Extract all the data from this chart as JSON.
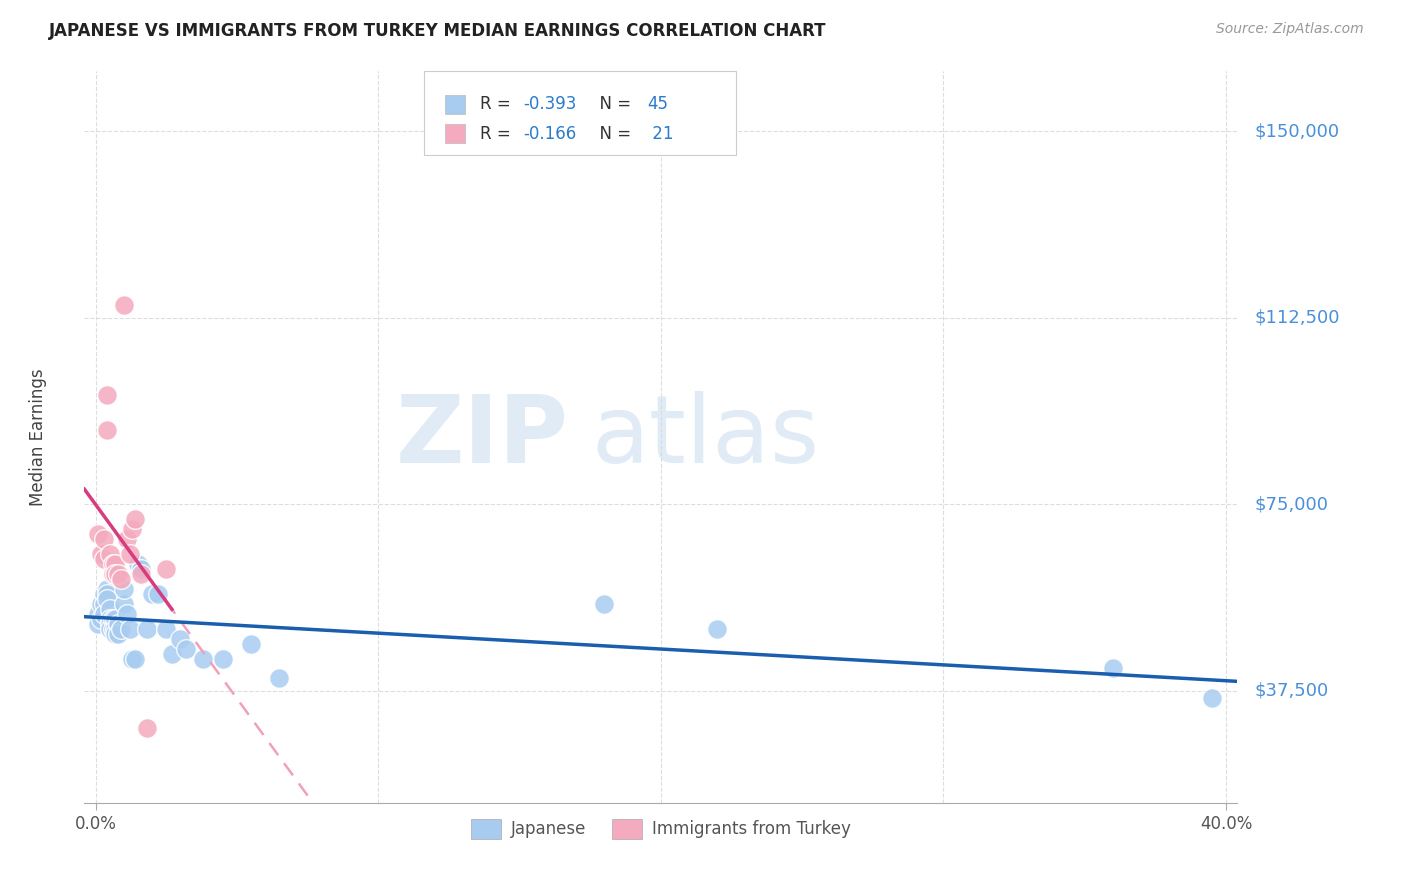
{
  "title": "JAPANESE VS IMMIGRANTS FROM TURKEY MEDIAN EARNINGS CORRELATION CHART",
  "source": "Source: ZipAtlas.com",
  "ylabel": "Median Earnings",
  "yticks": [
    37500,
    75000,
    112500,
    150000
  ],
  "ytick_labels": [
    "$37,500",
    "$75,000",
    "$112,500",
    "$150,000"
  ],
  "ymin": 15000,
  "ymax": 162000,
  "xmin": -0.004,
  "xmax": 0.404,
  "watermark_zip": "ZIP",
  "watermark_atlas": "atlas",
  "color_japanese": "#A8CCF0",
  "color_turkey": "#F4AABF",
  "color_line_japanese": "#1A5EAD",
  "color_line_turkey": "#D63C7E",
  "color_dashed_turkey": "#F0A0BC",
  "background_color": "#FFFFFF",
  "grid_color": "#DDDDDD",
  "legend_r1_label": "R = ",
  "legend_r1_val": "-0.393",
  "legend_r1_n_label": "   N = ",
  "legend_r1_n_val": "45",
  "legend_r2_label": "R = ",
  "legend_r2_val": "-0.166",
  "legend_r2_n_label": "   N = ",
  "legend_r2_n_val": " 21",
  "japanese_x": [
    0.001,
    0.001,
    0.002,
    0.002,
    0.003,
    0.003,
    0.003,
    0.004,
    0.004,
    0.004,
    0.005,
    0.005,
    0.005,
    0.005,
    0.006,
    0.006,
    0.007,
    0.007,
    0.007,
    0.008,
    0.008,
    0.009,
    0.01,
    0.01,
    0.011,
    0.012,
    0.013,
    0.014,
    0.015,
    0.016,
    0.018,
    0.02,
    0.022,
    0.025,
    0.027,
    0.03,
    0.032,
    0.038,
    0.045,
    0.055,
    0.065,
    0.18,
    0.22,
    0.36,
    0.395
  ],
  "japanese_y": [
    53000,
    51000,
    55000,
    52000,
    57000,
    55000,
    53000,
    58000,
    57000,
    56000,
    54000,
    52000,
    51000,
    50000,
    52000,
    50000,
    52000,
    50000,
    49000,
    51000,
    49000,
    50000,
    55000,
    58000,
    53000,
    50000,
    44000,
    44000,
    63000,
    62000,
    50000,
    57000,
    57000,
    50000,
    45000,
    48000,
    46000,
    44000,
    44000,
    47000,
    40000,
    55000,
    50000,
    42000,
    36000
  ],
  "turkey_x": [
    0.001,
    0.002,
    0.003,
    0.003,
    0.004,
    0.004,
    0.005,
    0.006,
    0.006,
    0.007,
    0.007,
    0.008,
    0.009,
    0.01,
    0.011,
    0.012,
    0.013,
    0.014,
    0.016,
    0.018,
    0.025
  ],
  "turkey_y": [
    69000,
    65000,
    68000,
    64000,
    97000,
    90000,
    65000,
    63000,
    61000,
    63000,
    61000,
    61000,
    60000,
    115000,
    68000,
    65000,
    70000,
    72000,
    61000,
    30000,
    62000
  ]
}
